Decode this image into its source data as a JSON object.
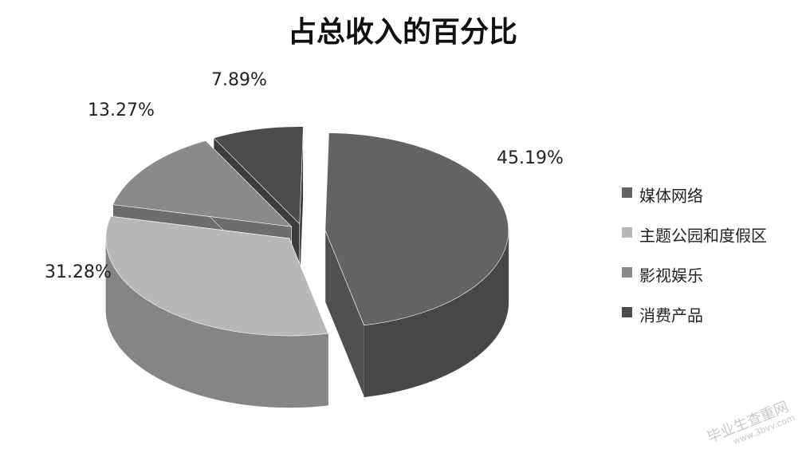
{
  "chart_data": {
    "type": "pie",
    "title": "占总收入的百分比",
    "categories": [
      "媒体网络",
      "主题公园和度假区",
      "影视娱乐",
      "消费产品"
    ],
    "values": [
      45.19,
      31.28,
      13.27,
      7.89
    ],
    "labels": [
      "45.19%",
      "31.28%",
      "13.27%",
      "7.89%"
    ],
    "unit": "%",
    "exploded": true,
    "three_d": true,
    "legend_position": "right",
    "colors": {
      "top": [
        "#656266",
        "#b8b8b8",
        "#8a8a8a",
        "#4a4c4a"
      ],
      "side": [
        "#474748",
        "#858585",
        "#5a5a5a",
        "#303332"
      ],
      "cut": [
        "#505051",
        "#9a9a9a",
        "#6d6d6d",
        "#3b3d3c"
      ]
    }
  },
  "watermark": {
    "line1": "毕业生查重网",
    "line2": "www.3bvv.com"
  }
}
